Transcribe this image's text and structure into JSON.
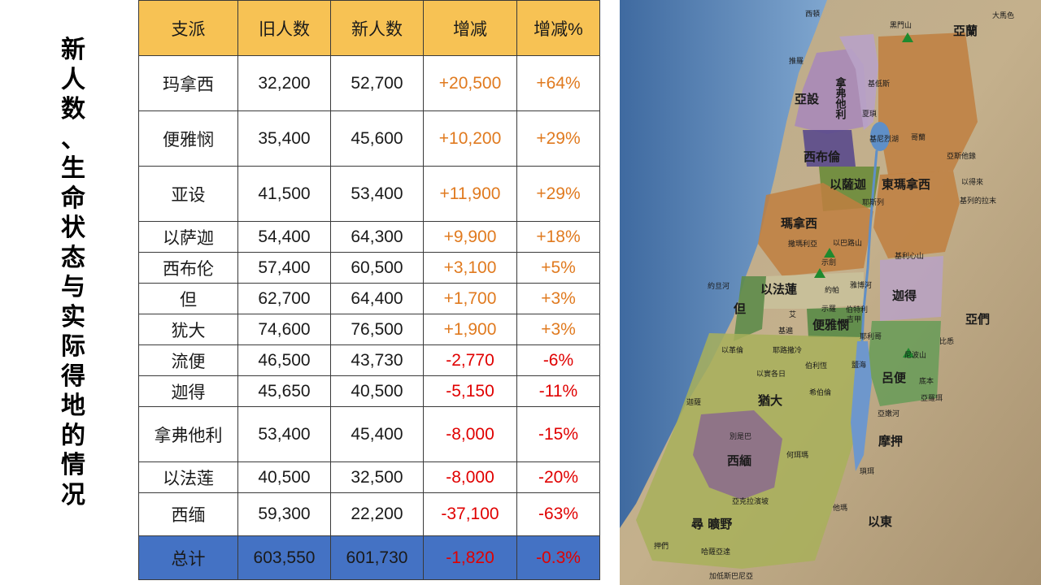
{
  "title_chars": [
    "新",
    "人",
    "数",
    "、",
    "生",
    "命",
    "状",
    "态",
    "与",
    "实",
    "际",
    "得",
    "地",
    "的",
    "情",
    "况"
  ],
  "table": {
    "headers": [
      "支派",
      "旧人数",
      "新人数",
      "增减",
      "增减%"
    ],
    "rows": [
      {
        "tribe": "玛拿西",
        "old": "32,200",
        "new": "52,700",
        "diff": "+20,500",
        "pct": "+64%",
        "sign": "pos"
      },
      {
        "tribe": "便雅悯",
        "old": "35,400",
        "new": "45,600",
        "diff": "+10,200",
        "pct": "+29%",
        "sign": "pos"
      },
      {
        "tribe": "亚设",
        "old": "41,500",
        "new": "53,400",
        "diff": "+11,900",
        "pct": "+29%",
        "sign": "pos"
      },
      {
        "tribe": "以萨迦",
        "old": "54,400",
        "new": "64,300",
        "diff": "+9,900",
        "pct": "+18%",
        "sign": "pos"
      },
      {
        "tribe": "西布伦",
        "old": "57,400",
        "new": "60,500",
        "diff": "+3,100",
        "pct": "+5%",
        "sign": "pos"
      },
      {
        "tribe": "但",
        "old": "62,700",
        "new": "64,400",
        "diff": "+1,700",
        "pct": "+3%",
        "sign": "pos"
      },
      {
        "tribe": "犹大",
        "old": "74,600",
        "new": "76,500",
        "diff": "+1,900",
        "pct": "+3%",
        "sign": "pos"
      },
      {
        "tribe": "流便",
        "old": "46,500",
        "new": "43,730",
        "diff": "-2,770",
        "pct": "-6%",
        "sign": "neg"
      },
      {
        "tribe": "迦得",
        "old": "45,650",
        "new": "40,500",
        "diff": "-5,150",
        "pct": "-11%",
        "sign": "neg"
      },
      {
        "tribe": "拿弗他利",
        "old": "53,400",
        "new": "45,400",
        "diff": "-8,000",
        "pct": "-15%",
        "sign": "neg"
      },
      {
        "tribe": "以法莲",
        "old": "40,500",
        "new": "32,500",
        "diff": "-8,000",
        "pct": "-20%",
        "sign": "neg"
      },
      {
        "tribe": "西缅",
        "old": "59,300",
        "new": "22,200",
        "diff": "-37,100",
        "pct": "-63%",
        "sign": "neg"
      }
    ],
    "total": {
      "tribe": "总计",
      "old": "603,550",
      "new": "601,730",
      "diff": "-1,820",
      "pct": "-0.3%"
    }
  },
  "map": {
    "regions": [
      "亞設",
      "拿弗他利",
      "西布倫",
      "以薩迦",
      "東瑪拿西",
      "瑪拿西",
      "以法蓮",
      "迦得",
      "但",
      "便雅憫",
      "呂便",
      "猶大",
      "西緬",
      "亞蘭",
      "亞們",
      "摩押",
      "以東",
      "尋 曠野"
    ],
    "places": [
      "西頓",
      "大馬色",
      "推羅",
      "黑門山",
      "基低斯",
      "夏瑣",
      "基尼烈湖",
      "哥蘭",
      "亞斯他錄",
      "以得來",
      "基列的拉末",
      "耶斯列",
      "撒瑪利亞",
      "示劍",
      "以巴路山",
      "基利心山",
      "雅博河",
      "約旦河",
      "約帕",
      "示羅",
      "伯特利",
      "艾",
      "吉甲",
      "基遍",
      "耶利哥",
      "以革倫",
      "耶路撒冷",
      "伯利恆",
      "比悉",
      "尼波山",
      "以實各日",
      "希伯倫",
      "鹽海",
      "底本",
      "亞羅珥",
      "迦薩",
      "別是巴",
      "何珥瑪",
      "亞嫩河",
      "瑣珥",
      "亞克拉濱坡",
      "他瑪",
      "押們",
      "哈薩亞達",
      "加低斯巴尼亞"
    ]
  }
}
